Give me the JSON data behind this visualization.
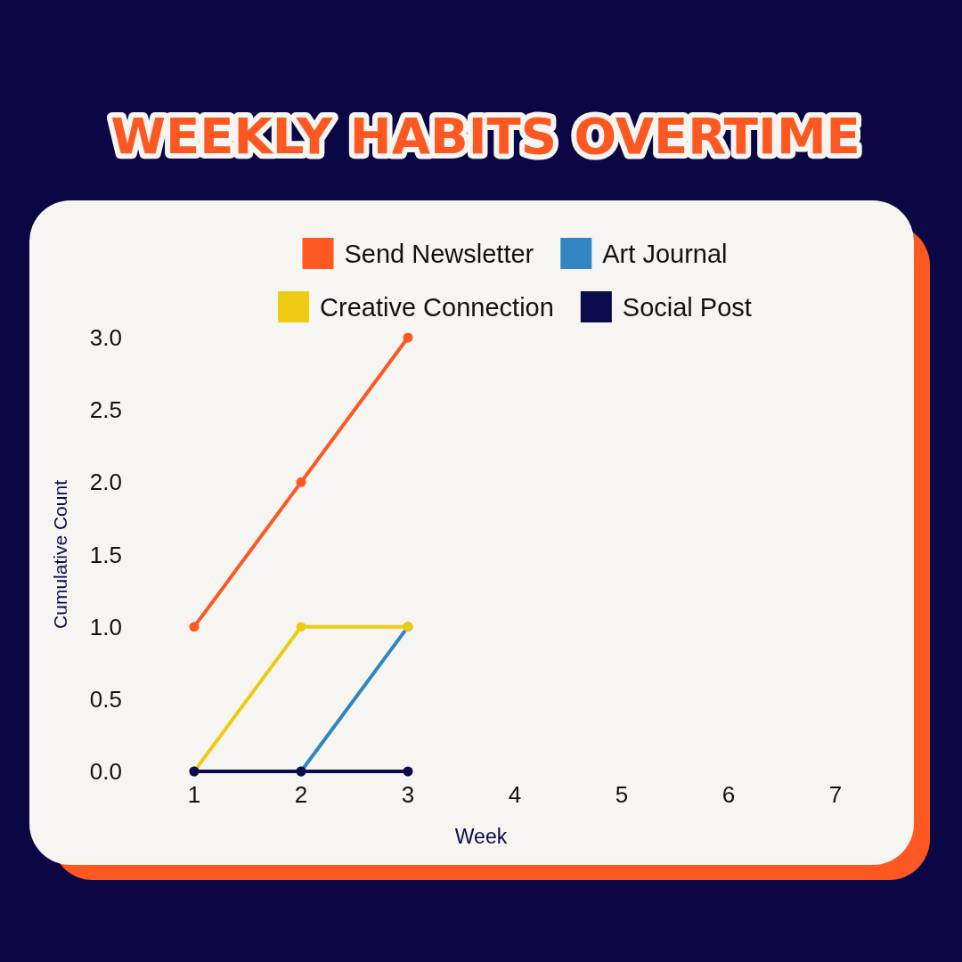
{
  "chart_data": {
    "type": "line",
    "title": "WEEKLY HABITS OVERTIME",
    "xlabel": "Week",
    "ylabel": "Cumulative Count",
    "x": [
      1,
      2,
      3
    ],
    "series": [
      {
        "name": "Send Newsletter",
        "color": "#fd5722",
        "values": [
          1,
          2,
          3
        ]
      },
      {
        "name": "Art Journal",
        "color": "#2f86c0",
        "values": [
          0,
          0,
          1
        ]
      },
      {
        "name": "Creative Connection",
        "color": "#eecb12",
        "values": [
          0,
          1,
          1
        ]
      },
      {
        "name": "Social Post",
        "color": "#0b0a4b",
        "values": [
          0,
          0,
          0
        ]
      }
    ],
    "xlim": [
      1,
      7
    ],
    "xticks": [
      1,
      2,
      3,
      4,
      5,
      6,
      7
    ],
    "ylim": [
      0,
      3
    ],
    "yticks": [
      {
        "value": 0,
        "label": "0.0"
      },
      {
        "value": 0.5,
        "label": "0.5"
      },
      {
        "value": 1,
        "label": "1.0"
      },
      {
        "value": 1.5,
        "label": "1.5"
      },
      {
        "value": 2,
        "label": "2.0"
      },
      {
        "value": 2.5,
        "label": "2.5"
      },
      {
        "value": 3,
        "label": "3.0"
      }
    ],
    "legend": "top",
    "marker": "circle",
    "line_style": "solid"
  }
}
